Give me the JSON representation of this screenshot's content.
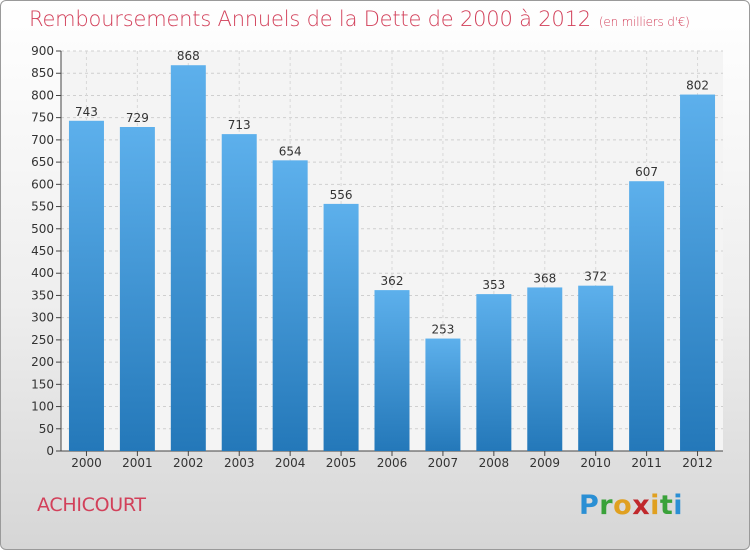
{
  "header": {
    "title": "Remboursements Annuels de la Dette de 2000 à 2012",
    "unit": "(en milliers d'€)"
  },
  "footer": {
    "commune": "ACHICOURT",
    "logo": {
      "letters": [
        "P",
        "r",
        "o",
        "x",
        "i",
        "t",
        "i"
      ],
      "colors": [
        "#2a8fd4",
        "#3aa23a",
        "#e0a020",
        "#c0282c",
        "#e0a020",
        "#3aa23a",
        "#2a8fd4"
      ]
    }
  },
  "chart_data": {
    "type": "bar",
    "categories": [
      "2000",
      "2001",
      "2002",
      "2003",
      "2004",
      "2005",
      "2006",
      "2007",
      "2008",
      "2009",
      "2010",
      "2011",
      "2012"
    ],
    "values": [
      743,
      729,
      868,
      713,
      654,
      556,
      362,
      253,
      353,
      368,
      372,
      607,
      802
    ],
    "title": "Remboursements Annuels de la Dette de 2000 à 2012",
    "ylim": [
      0,
      900
    ],
    "yticks": [
      0,
      50,
      100,
      150,
      200,
      250,
      300,
      350,
      400,
      450,
      500,
      550,
      600,
      650,
      700,
      750,
      800,
      850,
      900
    ],
    "grid": true,
    "bar_color_top": "#5db0ec",
    "bar_color_bottom": "#2478b9",
    "data_labels": true
  }
}
